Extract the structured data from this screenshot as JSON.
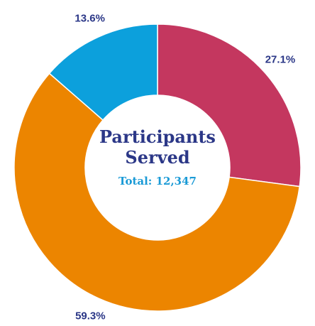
{
  "chart_data": {
    "type": "donut",
    "title": "Participants Served",
    "annotation": "Total: 12,347",
    "values": [
      27.1,
      59.3,
      13.6
    ],
    "value_labels": [
      "27.1%",
      "59.3%",
      "13.6%"
    ],
    "colors": [
      "#c4375f",
      "#ec8500",
      "#0ca0dc"
    ]
  }
}
